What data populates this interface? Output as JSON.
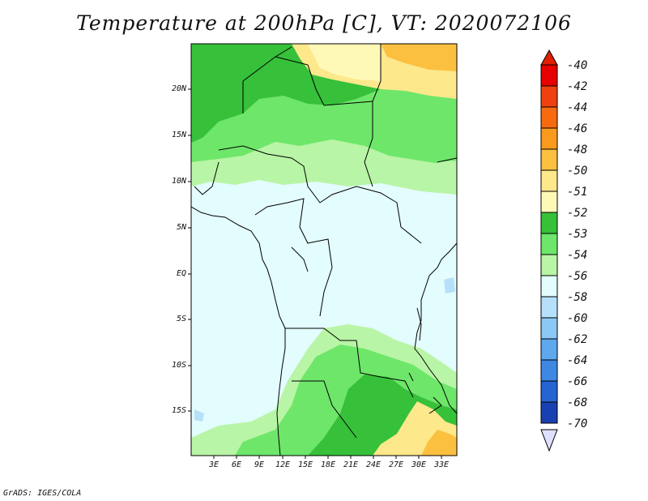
{
  "title": "Temperature at 200hPa [C], VT: 2020072106",
  "footer": "GrADS: IGES/COLA",
  "lat_labels": [
    "20N",
    "15N",
    "10N",
    "5N",
    "EQ",
    "5S",
    "10S",
    "15S"
  ],
  "lon_labels": [
    "3E",
    "6E",
    "9E",
    "12E",
    "15E",
    "18E",
    "21E",
    "24E",
    "27E",
    "30E",
    "33E"
  ],
  "colorbar": {
    "labels": [
      "-40",
      "-42",
      "-44",
      "-46",
      "-48",
      "-50",
      "-51",
      "-52",
      "-53",
      "-54",
      "-56",
      "-58",
      "-60",
      "-62",
      "-64",
      "-66",
      "-68",
      "-70"
    ],
    "colors": [
      "#e60000",
      "#f04010",
      "#f86a10",
      "#fa9a1c",
      "#fcc040",
      "#fde88c",
      "#fff9b8",
      "#37c03a",
      "#6ee66a",
      "#b8f5a6",
      "#e3fcfd",
      "#b6e0fa",
      "#8cc8f5",
      "#5ea8ee",
      "#3e88e4",
      "#2664d2",
      "#1940b0",
      "#0a0a7a"
    ],
    "arrow_top_color": "#e02000",
    "arrow_bottom_color": "#dfe0ff"
  }
}
